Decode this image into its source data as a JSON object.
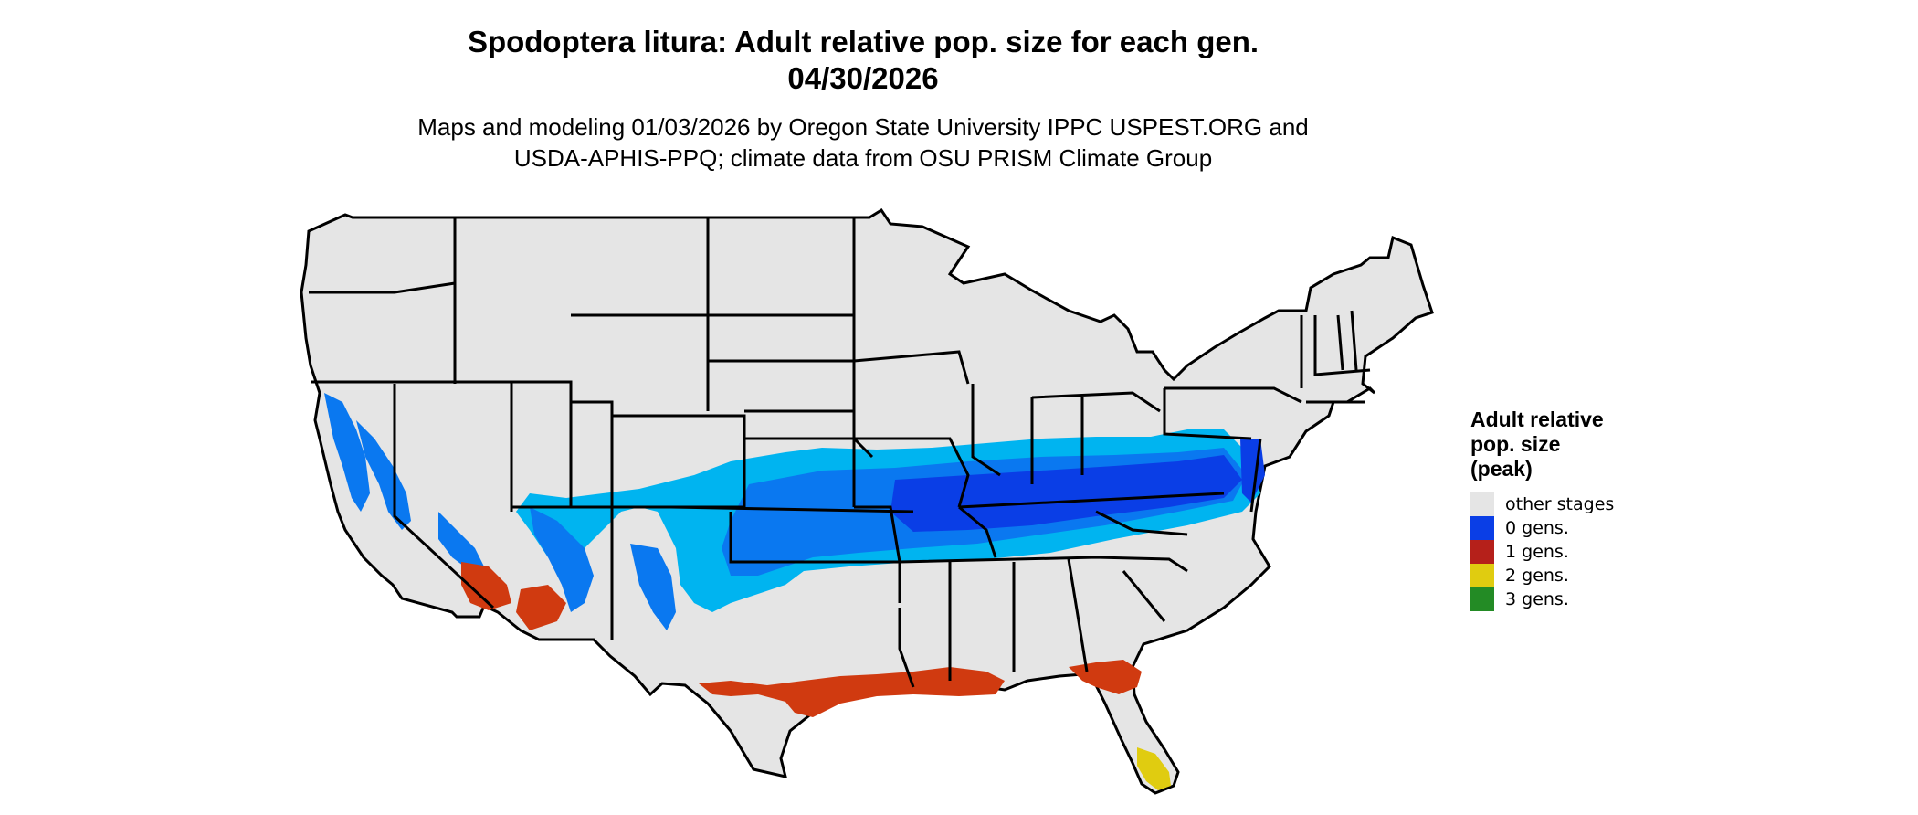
{
  "title": {
    "line1": "Spodoptera litura: Adult relative pop. size for each gen.",
    "line2": "04/30/2026"
  },
  "subtitle": {
    "line1": "Maps and modeling 01/03/2026 by Oregon State University IPPC USPEST.ORG and",
    "line2": "USDA-APHIS-PPQ; climate data from OSU PRISM Climate Group"
  },
  "legend": {
    "title_line1": "Adult relative",
    "title_line2": "pop. size",
    "title_line3": "(peak)",
    "items": [
      {
        "label": "other stages",
        "color": "#e5e5e5"
      },
      {
        "label": "0 gens.",
        "color": "#0a3ee6"
      },
      {
        "label": "1 gens.",
        "color": "#b5201a"
      },
      {
        "label": "2 gens.",
        "color": "#e0cc10"
      },
      {
        "label": "3 gens.",
        "color": "#238b25"
      }
    ]
  },
  "colors": {
    "land": "#e5e5e5",
    "border": "#000000",
    "blue_light": "#00b4f0",
    "blue_mid": "#0a78f0",
    "blue_dark": "#0a3ee6",
    "red": "#d03a10",
    "yellow": "#e0cc10"
  }
}
